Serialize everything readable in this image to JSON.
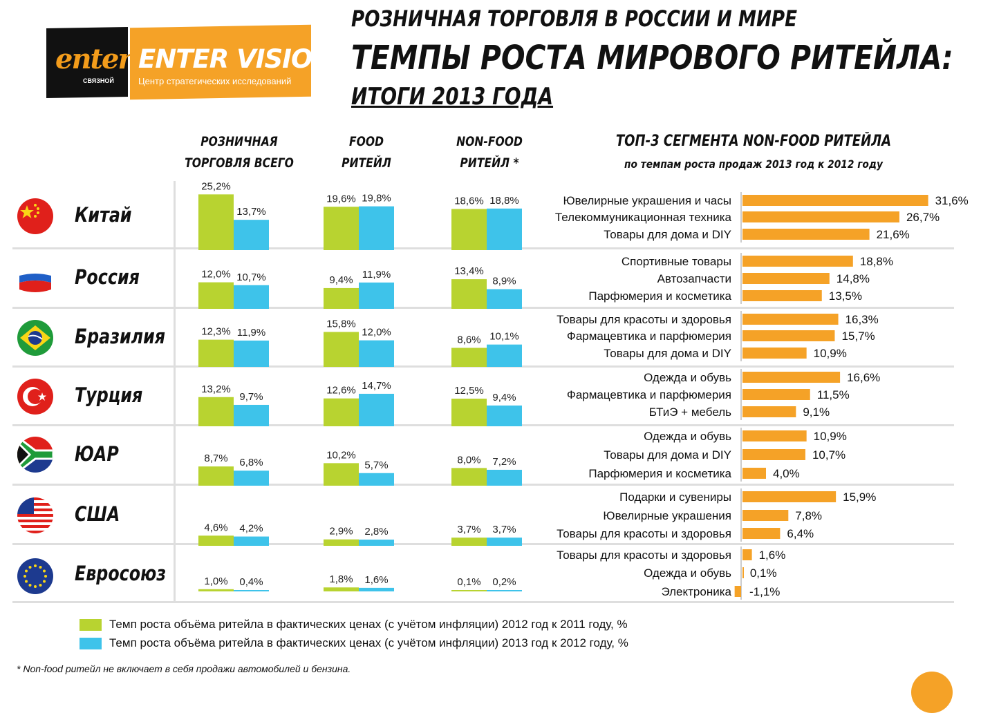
{
  "logo": {
    "mark": "enter",
    "mark_sub": "СВЯЗНОЙ",
    "brand": "ENTER VISION",
    "tagline": "Центр стратегических исследований"
  },
  "title": {
    "line1": "РОЗНИЧНАЯ ТОРГОВЛЯ В РОССИИ И МИРЕ",
    "line2": "ТЕМПЫ РОСТА МИРОВОГО РИТЕЙЛА:",
    "line3": "ИТОГИ 2013 ГОДА"
  },
  "headers": {
    "col1_a": "РОЗНИЧНАЯ",
    "col1_b": "ТОРГОВЛЯ ВСЕГО",
    "col2_a": "FOOD",
    "col2_b": "РИТЕЙЛ",
    "col3_a": "NON-FOOD",
    "col3_b": "РИТЕЙЛ *",
    "segments_title": "ТОП-3 СЕГМЕНТА NON-FOOD РИТЕЙЛА",
    "segments_subtitle": "по темпам роста продаж 2013 год к 2012 году"
  },
  "colors": {
    "green": "#b8d330",
    "blue": "#3ec3ea",
    "orange": "#f5a227"
  },
  "chart_data": {
    "type": "bar",
    "series": [
      {
        "name": "Темп роста объёма ритейла в фактических ценах (с учётом инфляции) 2012 год к 2011 году, %",
        "color": "#b8d330"
      },
      {
        "name": "Темп роста объёма ритейла в фактических ценах (с учётом инфляции) 2013 год к 2012 году, %",
        "color": "#3ec3ea"
      }
    ],
    "groups": [
      "РОЗНИЧНАЯ ТОРГОВЛЯ ВСЕГО",
      "FOOD РИТЕЙЛ",
      "NON-FOOD РИТЕЙЛ *"
    ],
    "countries": [
      {
        "name": "Китай",
        "flag": "china",
        "values": [
          [
            25.2,
            13.7
          ],
          [
            19.6,
            19.8
          ],
          [
            18.6,
            18.8
          ]
        ],
        "labels": [
          [
            "25,2%",
            "13,7%"
          ],
          [
            "19,6%",
            "19,8%"
          ],
          [
            "18,6%",
            "18,8%"
          ]
        ],
        "segments": [
          {
            "name": "Ювелирные украшения и часы",
            "value": 31.6,
            "label": "31,6%"
          },
          {
            "name": "Телекоммуникационная техника",
            "value": 26.7,
            "label": "26,7%"
          },
          {
            "name": "Товары для дома и DIY",
            "value": 21.6,
            "label": "21,6%"
          }
        ]
      },
      {
        "name": "Россия",
        "flag": "russia",
        "values": [
          [
            12.0,
            10.7
          ],
          [
            9.4,
            11.9
          ],
          [
            13.4,
            8.9
          ]
        ],
        "labels": [
          [
            "12,0%",
            "10,7%"
          ],
          [
            "9,4%",
            "11,9%"
          ],
          [
            "13,4%",
            "8,9%"
          ]
        ],
        "segments": [
          {
            "name": "Спортивные товары",
            "value": 18.8,
            "label": "18,8%"
          },
          {
            "name": "Автозапчасти",
            "value": 14.8,
            "label": "14,8%"
          },
          {
            "name": "Парфюмерия и косметика",
            "value": 13.5,
            "label": "13,5%"
          }
        ]
      },
      {
        "name": "Бразилия",
        "flag": "brazil",
        "values": [
          [
            12.3,
            11.9
          ],
          [
            15.8,
            12.0
          ],
          [
            8.6,
            10.1
          ]
        ],
        "labels": [
          [
            "12,3%",
            "11,9%"
          ],
          [
            "15,8%",
            "12,0%"
          ],
          [
            "8,6%",
            "10,1%"
          ]
        ],
        "segments": [
          {
            "name": "Товары для красоты и здоровья",
            "value": 16.3,
            "label": "16,3%"
          },
          {
            "name": "Фармацевтика и парфюмерия",
            "value": 15.7,
            "label": "15,7%"
          },
          {
            "name": "Товары для дома и DIY",
            "value": 10.9,
            "label": "10,9%"
          }
        ]
      },
      {
        "name": "Турция",
        "flag": "turkey",
        "values": [
          [
            13.2,
            9.7
          ],
          [
            12.6,
            14.7
          ],
          [
            12.5,
            9.4
          ]
        ],
        "labels": [
          [
            "13,2%",
            "9,7%"
          ],
          [
            "12,6%",
            "14,7%"
          ],
          [
            "12,5%",
            "9,4%"
          ]
        ],
        "segments": [
          {
            "name": "Одежда и обувь",
            "value": 16.6,
            "label": "16,6%"
          },
          {
            "name": "Фармацевтика и парфюмерия",
            "value": 11.5,
            "label": "11,5%"
          },
          {
            "name": "БТиЭ + мебель",
            "value": 9.1,
            "label": "9,1%"
          }
        ]
      },
      {
        "name": "ЮАР",
        "flag": "southafrica",
        "values": [
          [
            8.7,
            6.8
          ],
          [
            10.2,
            5.7
          ],
          [
            8.0,
            7.2
          ]
        ],
        "labels": [
          [
            "8,7%",
            "6,8%"
          ],
          [
            "10,2%",
            "5,7%"
          ],
          [
            "8,0%",
            "7,2%"
          ]
        ],
        "segments": [
          {
            "name": "Одежда и обувь",
            "value": 10.9,
            "label": "10,9%"
          },
          {
            "name": "Товары для дома и DIY",
            "value": 10.7,
            "label": "10,7%"
          },
          {
            "name": "Парфюмерия и косметика",
            "value": 4.0,
            "label": "4,0%"
          }
        ]
      },
      {
        "name": "США",
        "flag": "usa",
        "values": [
          [
            4.6,
            4.2
          ],
          [
            2.9,
            2.8
          ],
          [
            3.7,
            3.7
          ]
        ],
        "labels": [
          [
            "4,6%",
            "4,2%"
          ],
          [
            "2,9%",
            "2,8%"
          ],
          [
            "3,7%",
            "3,7%"
          ]
        ],
        "segments": [
          {
            "name": "Подарки и сувениры",
            "value": 15.9,
            "label": "15,9%"
          },
          {
            "name": "Ювелирные украшения",
            "value": 7.8,
            "label": "7,8%"
          },
          {
            "name": "Товары для красоты и здоровья",
            "value": 6.4,
            "label": "6,4%"
          }
        ]
      },
      {
        "name": "Евросоюз",
        "flag": "eu",
        "values": [
          [
            1.0,
            0.4
          ],
          [
            1.8,
            1.6
          ],
          [
            0.1,
            0.2
          ]
        ],
        "labels": [
          [
            "1,0%",
            "0,4%"
          ],
          [
            "1,8%",
            "1,6%"
          ],
          [
            "0,1%",
            "0,2%"
          ]
        ],
        "segments": [
          {
            "name": "Товары для красоты и здоровья",
            "value": 1.6,
            "label": "1,6%"
          },
          {
            "name": "Одежда и обувь",
            "value": 0.1,
            "label": "0,1%"
          },
          {
            "name": "Электроника",
            "value": -1.1,
            "label": "-1,1%"
          }
        ]
      }
    ]
  },
  "legend": {
    "green_text": "Темп роста объёма ритейла в фактических ценах (с учётом инфляции) 2012 год к 2011 году, %",
    "blue_text": "Темп роста объёма ритейла в фактических ценах (с учётом инфляции) 2013 год к 2012 году, %"
  },
  "footnote": "* Non-food ритейл не включает в себя продажи  автомобилей и бензина."
}
